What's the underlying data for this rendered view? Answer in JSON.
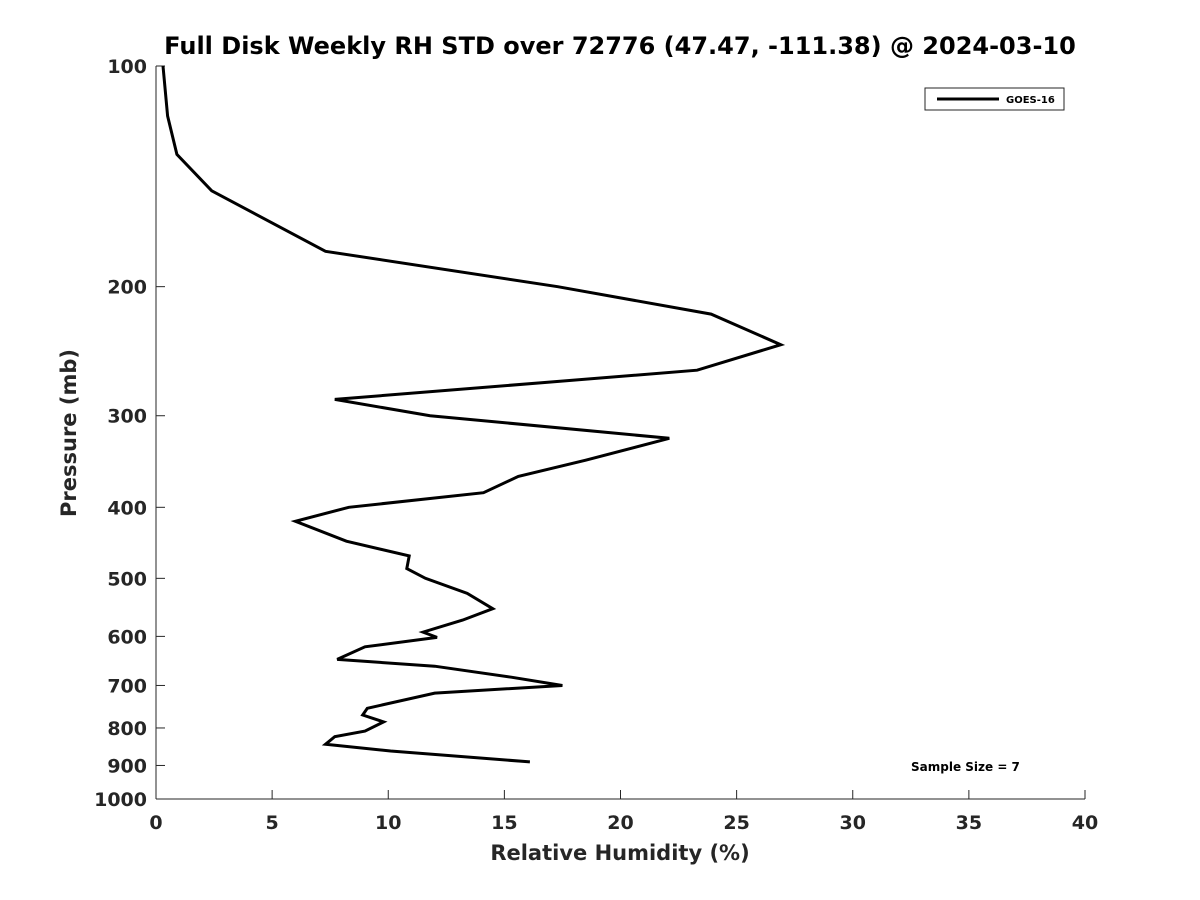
{
  "chart_data": {
    "type": "line",
    "title": "Full Disk Weekly RH STD over 72776 (47.47, -111.38) @ 2024-03-10",
    "xlabel": "Relative Humidity (%)",
    "ylabel": "Pressure (mb)",
    "xlim": [
      0,
      40
    ],
    "ylim": [
      100,
      1000
    ],
    "y_scale": "log",
    "y_reversed": true,
    "grid": false,
    "legend_position": "top-right",
    "x_ticks": [
      0,
      5,
      10,
      15,
      20,
      25,
      30,
      35,
      40
    ],
    "y_ticks": [
      100,
      200,
      300,
      400,
      500,
      600,
      700,
      800,
      900,
      1000
    ],
    "series": [
      {
        "name": "GOES-16",
        "color": "#000000",
        "points": [
          {
            "x": 0.3,
            "y": 100
          },
          {
            "x": 0.5,
            "y": 117
          },
          {
            "x": 0.9,
            "y": 132
          },
          {
            "x": 2.4,
            "y": 148
          },
          {
            "x": 7.3,
            "y": 179
          },
          {
            "x": 17.3,
            "y": 200
          },
          {
            "x": 23.9,
            "y": 218
          },
          {
            "x": 26.9,
            "y": 240
          },
          {
            "x": 23.3,
            "y": 260
          },
          {
            "x": 7.7,
            "y": 285
          },
          {
            "x": 11.8,
            "y": 300
          },
          {
            "x": 22.1,
            "y": 322
          },
          {
            "x": 18.5,
            "y": 345
          },
          {
            "x": 15.6,
            "y": 363
          },
          {
            "x": 14.1,
            "y": 382
          },
          {
            "x": 8.3,
            "y": 400
          },
          {
            "x": 6.0,
            "y": 418
          },
          {
            "x": 8.2,
            "y": 445
          },
          {
            "x": 10.9,
            "y": 466
          },
          {
            "x": 10.8,
            "y": 485
          },
          {
            "x": 11.6,
            "y": 500
          },
          {
            "x": 13.4,
            "y": 524
          },
          {
            "x": 14.5,
            "y": 550
          },
          {
            "x": 13.2,
            "y": 570
          },
          {
            "x": 11.5,
            "y": 592
          },
          {
            "x": 12.1,
            "y": 602
          },
          {
            "x": 9.0,
            "y": 620
          },
          {
            "x": 7.8,
            "y": 645
          },
          {
            "x": 12.0,
            "y": 659
          },
          {
            "x": 15.3,
            "y": 682
          },
          {
            "x": 17.5,
            "y": 700
          },
          {
            "x": 12.0,
            "y": 717
          },
          {
            "x": 9.1,
            "y": 752
          },
          {
            "x": 8.9,
            "y": 768
          },
          {
            "x": 9.8,
            "y": 785
          },
          {
            "x": 9.0,
            "y": 808
          },
          {
            "x": 7.7,
            "y": 822
          },
          {
            "x": 7.3,
            "y": 842
          },
          {
            "x": 10.1,
            "y": 860
          },
          {
            "x": 16.1,
            "y": 890
          }
        ]
      }
    ],
    "annotations": [
      "Sample Size = 7"
    ]
  }
}
